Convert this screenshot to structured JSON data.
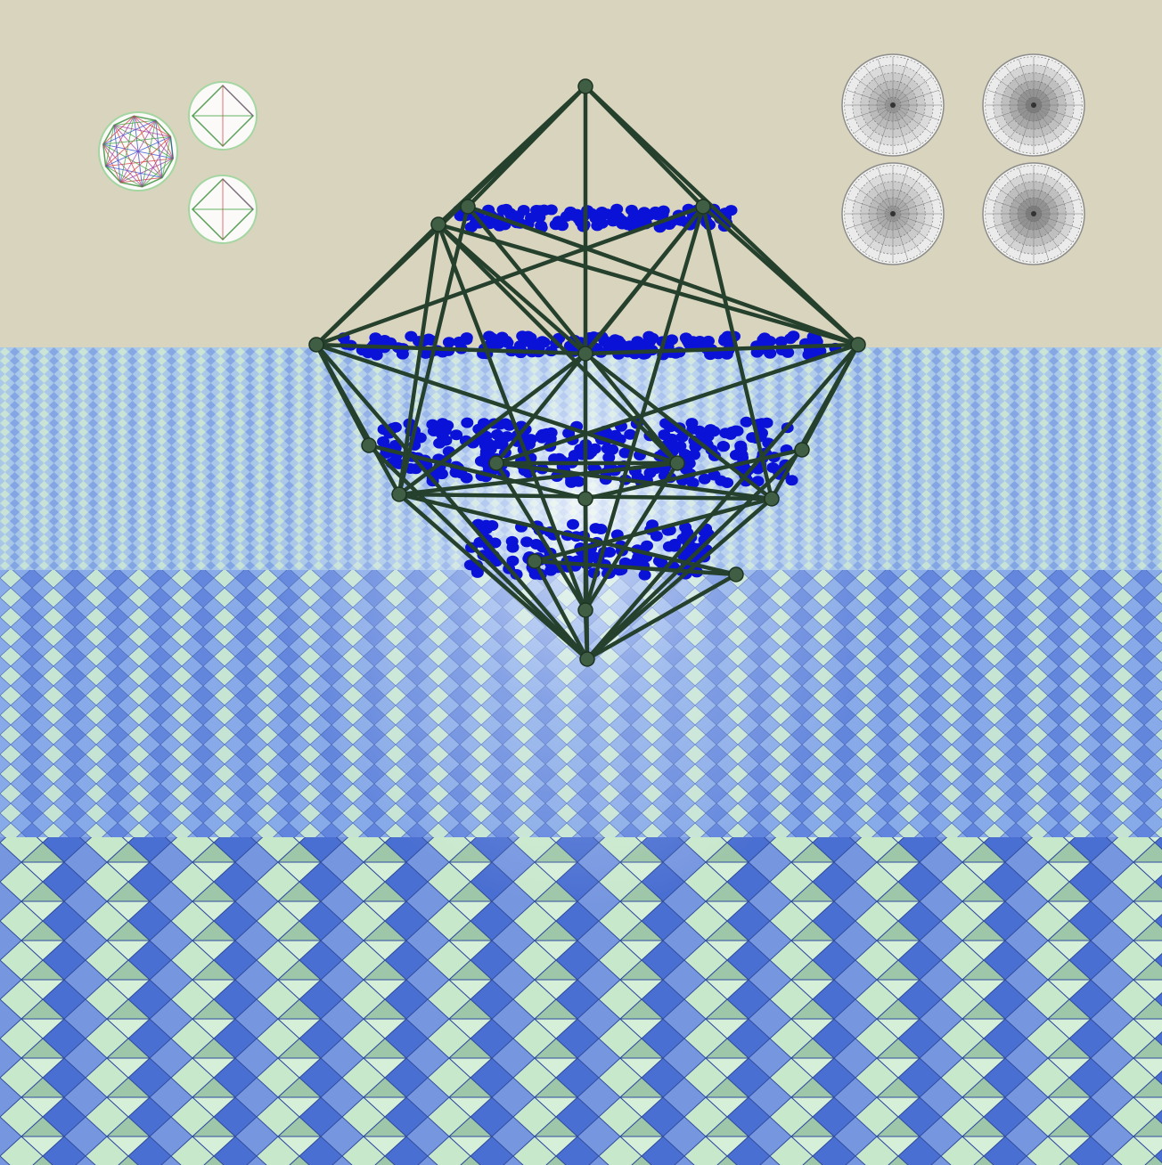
{
  "scene": {
    "subject": "wireframe-polytope-with-blue-spheres",
    "background": "tiled-floor-with-sky",
    "insets_left": [
      "icosahedron-wireframe",
      "octahedron-wireframe",
      "octahedron-wireframe"
    ],
    "insets_right": [
      "circular-projection",
      "circular-projection",
      "circular-projection",
      "circular-projection"
    ]
  },
  "colors": {
    "sky": "#d9d4be",
    "floor_light": "#cdebdc",
    "floor_tile_a": "#c6e7c9",
    "floor_tile_b": "#6a8fe0",
    "floor_tile_c": "#4f76d6",
    "frame": "#25402c",
    "node": "#3f5e44",
    "sphere": "#0b12d8",
    "inset_outline": "#9fd79f"
  }
}
